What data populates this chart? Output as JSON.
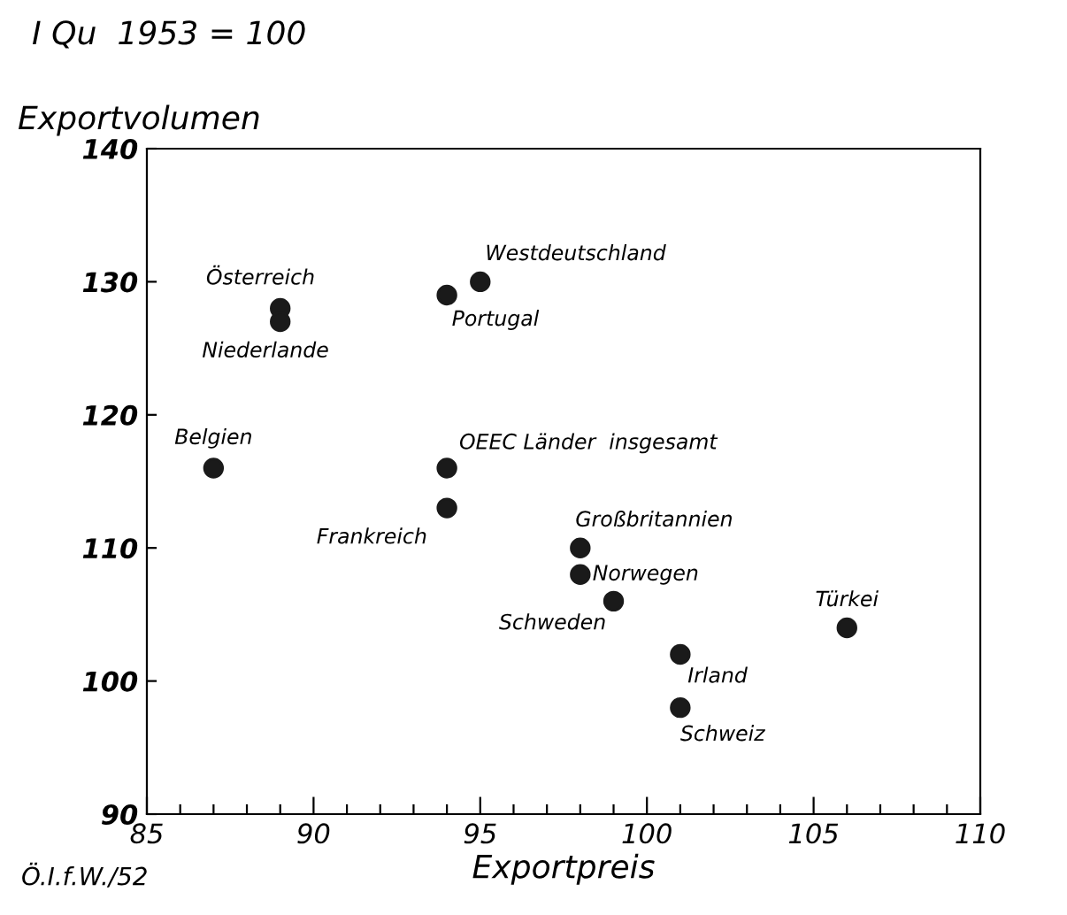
{
  "chart_data": {
    "type": "scatter",
    "title": "I Qu  1953 = 100",
    "xlabel": "Exportpreis",
    "ylabel": "Exportvolumen",
    "series": [
      {
        "color": "#1a1a1a",
        "x": [
          89,
          89,
          95,
          94,
          87,
          94,
          94,
          98,
          98,
          99,
          106,
          101,
          101
        ],
        "values": [
          128,
          127,
          130,
          129,
          116,
          116,
          113,
          110,
          108,
          106,
          104,
          102,
          98
        ]
      }
    ],
    "marker": "circle",
    "grid": false,
    "xlim": [
      85,
      110
    ],
    "ylim": [
      90,
      140
    ],
    "xticks": [
      85,
      {
        "value": 86,
        "label": null
      },
      {
        "value": 87,
        "label": null
      },
      {
        "value": 88,
        "label": null
      },
      {
        "value": 89,
        "label": null
      },
      90,
      {
        "value": 91,
        "label": null
      },
      {
        "value": 92,
        "label": null
      },
      {
        "value": 93,
        "label": null
      },
      {
        "value": 94,
        "label": null
      },
      95,
      {
        "value": 96,
        "label": null
      },
      {
        "value": 97,
        "label": null
      },
      {
        "value": 98,
        "label": null
      },
      {
        "value": 99,
        "label": null
      },
      100,
      {
        "value": 101,
        "label": null
      },
      {
        "value": 102,
        "label": null
      },
      {
        "value": 103,
        "label": null
      },
      {
        "value": 104,
        "label": null
      },
      105,
      {
        "value": 106,
        "label": null
      },
      {
        "value": 107,
        "label": null
      },
      {
        "value": 108,
        "label": null
      },
      {
        "value": 109,
        "label": null
      },
      110
    ],
    "yticks": [
      90,
      100,
      110,
      120,
      130,
      140
    ],
    "annotations": [
      {
        "text": "Österreich",
        "x": 89,
        "y": 128
      },
      {
        "text": "Niederlande",
        "x": 89,
        "y": 127
      },
      {
        "text": "Westdeutschland",
        "x": 95,
        "y": 130
      },
      {
        "text": "Portugal",
        "x": 94,
        "y": 129
      },
      {
        "text": "Belgien",
        "x": 87,
        "y": 116
      },
      {
        "text": "OEEC Länder  insgesamt",
        "x": 94,
        "y": 116
      },
      {
        "text": "Frankreich",
        "x": 94,
        "y": 113
      },
      {
        "text": "Großbritannien",
        "x": 98,
        "y": 110
      },
      {
        "text": "Norwegen",
        "x": 98,
        "y": 108
      },
      {
        "text": "Schweden",
        "x": 99,
        "y": 106
      },
      {
        "text": "Türkei",
        "x": 106,
        "y": 104
      },
      {
        "text": "Irland",
        "x": 101,
        "y": 102
      },
      {
        "text": "Schweiz",
        "x": 101,
        "y": 98
      },
      "Ö.I.f.W./52"
    ]
  }
}
